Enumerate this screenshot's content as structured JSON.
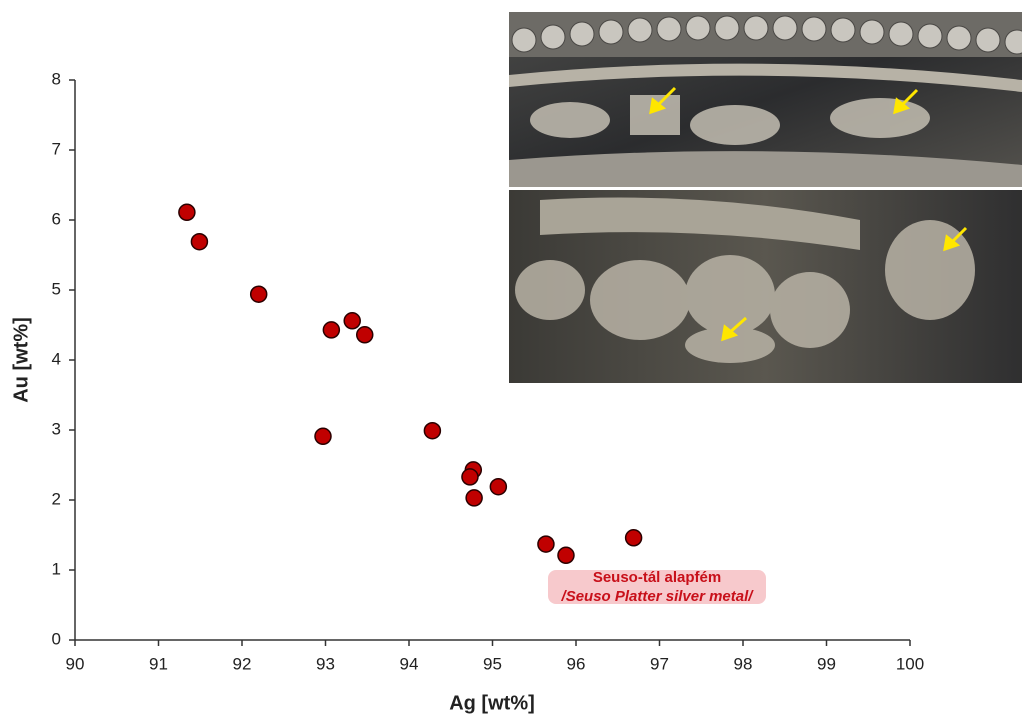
{
  "chart_data": {
    "type": "scatter",
    "x": [
      91.34,
      91.49,
      92.2,
      93.07,
      93.32,
      93.47,
      92.97,
      94.28,
      94.77,
      94.73,
      94.78,
      95.07,
      95.64,
      95.88,
      96.69
    ],
    "values": [
      6.11,
      5.69,
      4.94,
      4.43,
      4.56,
      4.36,
      2.91,
      2.99,
      2.43,
      2.33,
      2.03,
      2.19,
      1.37,
      1.21,
      1.46
    ],
    "color": "#c00000",
    "x_label": "Ag [wt%]",
    "y_label": "Au [wt%]",
    "xlim": [
      90,
      100
    ],
    "xticks": [
      90,
      91,
      92,
      93,
      94,
      95,
      96,
      97,
      98,
      99,
      100
    ],
    "ylim": [
      0,
      8
    ],
    "yticks": [
      0,
      1,
      2,
      3,
      4,
      5,
      6,
      7,
      8
    ],
    "grid": false,
    "annotations": [
      "Seuso-tál alapfém",
      "/Seuso Platter silver metal/"
    ]
  }
}
